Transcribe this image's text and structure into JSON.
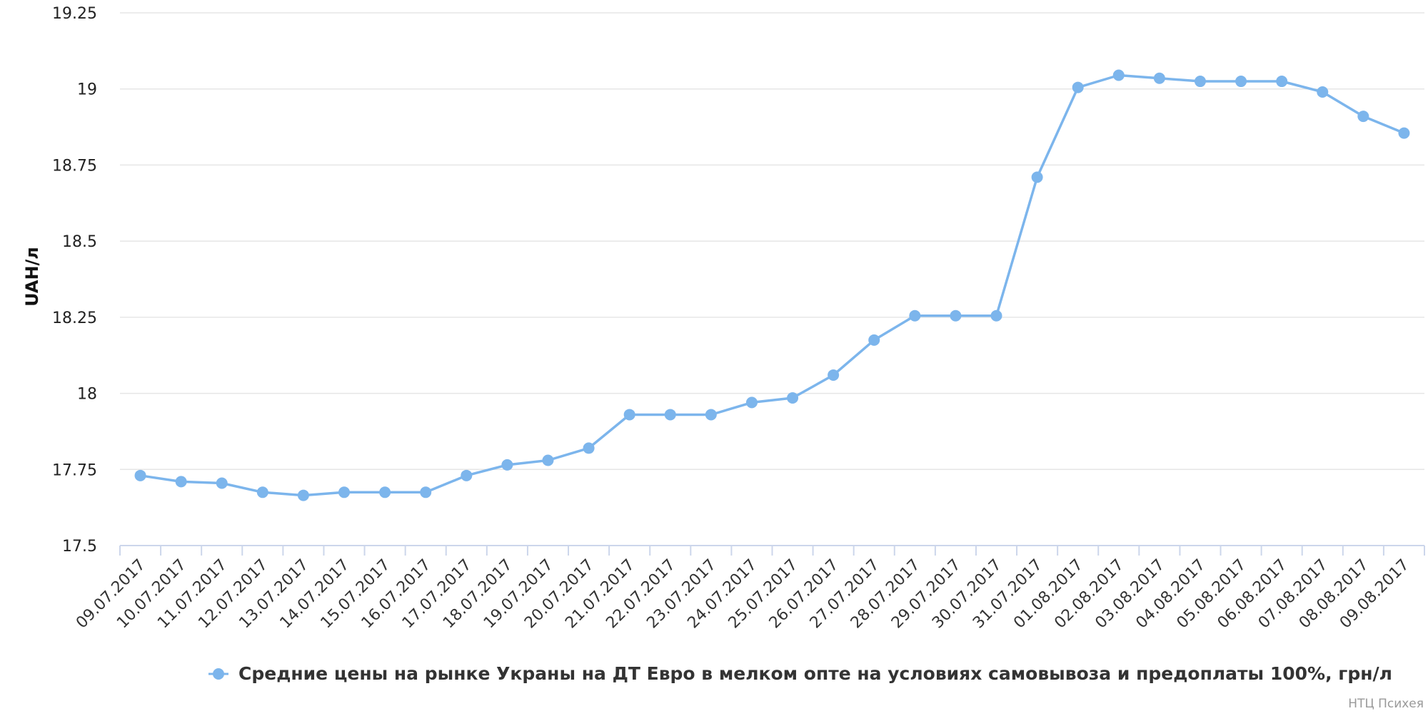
{
  "chart_data": {
    "type": "line",
    "ylabel": "UAH/л",
    "xlabel": "",
    "ylim": [
      17.5,
      19.25
    ],
    "yticks": [
      "17.5",
      "17.75",
      "18",
      "18.25",
      "18.5",
      "18.75",
      "19",
      "19.25"
    ],
    "grid": true,
    "legend_position": "bottom-center",
    "credit": "НТЦ Психея",
    "colors": {
      "series": "#7cb5ec",
      "grid": "#e6e6e6",
      "axis": "#ccd6eb"
    },
    "categories": [
      "09.07.2017",
      "10.07.2017",
      "11.07.2017",
      "12.07.2017",
      "13.07.2017",
      "14.07.2017",
      "15.07.2017",
      "16.07.2017",
      "17.07.2017",
      "18.07.2017",
      "19.07.2017",
      "20.07.2017",
      "21.07.2017",
      "22.07.2017",
      "23.07.2017",
      "24.07.2017",
      "25.07.2017",
      "26.07.2017",
      "27.07.2017",
      "28.07.2017",
      "29.07.2017",
      "30.07.2017",
      "31.07.2017",
      "01.08.2017",
      "02.08.2017",
      "03.08.2017",
      "04.08.2017",
      "05.08.2017",
      "06.08.2017",
      "07.08.2017",
      "08.08.2017",
      "09.08.2017"
    ],
    "series": [
      {
        "name": "Средние цены на рынке Украны на ДТ Евро в мелком опте на условиях самовывоза и предоплаты 100%, грн/л",
        "values": [
          17.73,
          17.71,
          17.705,
          17.675,
          17.665,
          17.675,
          17.675,
          17.675,
          17.73,
          17.765,
          17.78,
          17.82,
          17.93,
          17.93,
          17.93,
          17.97,
          17.985,
          18.06,
          18.175,
          18.255,
          18.255,
          18.255,
          18.71,
          19.005,
          19.045,
          19.035,
          19.025,
          19.025,
          19.025,
          18.99,
          18.91,
          18.855
        ]
      }
    ]
  }
}
